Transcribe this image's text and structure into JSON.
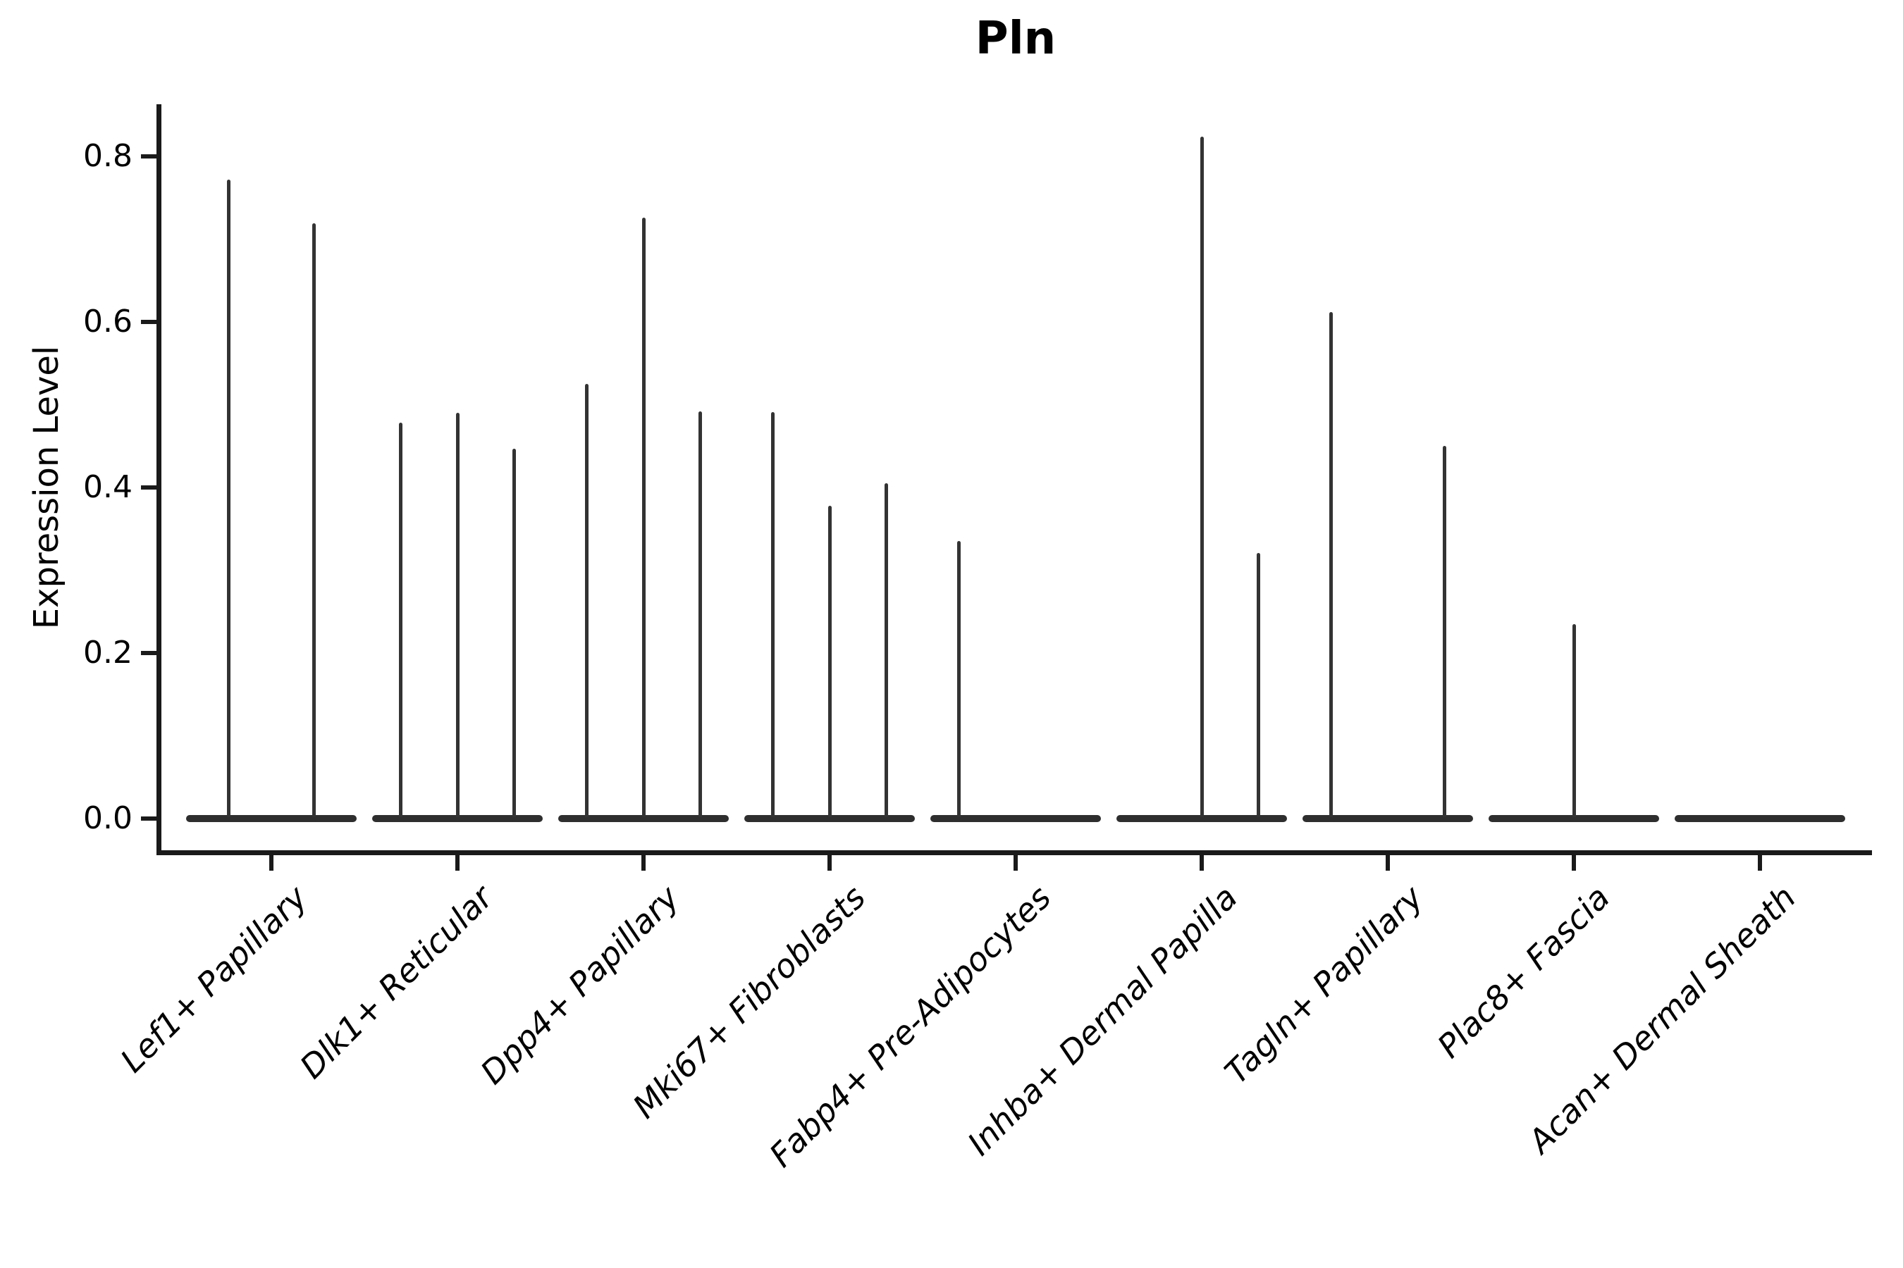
{
  "title": "Pln",
  "ylabel": "Expression Level",
  "yticks": [
    "0.0",
    "0.2",
    "0.4",
    "0.6",
    "0.8"
  ],
  "chart_data": {
    "type": "violin",
    "title": "Pln",
    "xlabel": "",
    "ylabel": "Expression Level",
    "ylim": [
      0.0,
      0.86
    ],
    "ytick_values": [
      0.0,
      0.2,
      0.4,
      0.6,
      0.8
    ],
    "grid": false,
    "legend": "none",
    "description": "Single-cell expression violin plot; each category shows a flat density body at 0 with thin spikes marking rare expressing cells.",
    "categories": [
      "Lef1+ Papillary",
      "Dlk1+ Reticular",
      "Dpp4+ Papillary",
      "Mki67+ Fibroblasts",
      "Fabp4+ Pre-Adipocytes",
      "Inhba+ Dermal Papilla",
      "Tagln+ Papillary",
      "Plac8+ Fascia",
      "Acan+ Dermal Sheath"
    ],
    "violins": [
      {
        "category": "Lef1+ Papillary",
        "baseline_value": 0.0,
        "spikes": [
          {
            "value": 0.772,
            "position": 0.25
          },
          {
            "value": 0.719,
            "position": 0.75
          }
        ]
      },
      {
        "category": "Dlk1+ Reticular",
        "baseline_value": 0.0,
        "spikes": [
          {
            "value": 0.478,
            "position": 0.167
          },
          {
            "value": 0.49,
            "position": 0.5
          },
          {
            "value": 0.447,
            "position": 0.833
          }
        ]
      },
      {
        "category": "Dpp4+ Papillary",
        "baseline_value": 0.0,
        "spikes": [
          {
            "value": 0.525,
            "position": 0.167
          },
          {
            "value": 0.726,
            "position": 0.5
          },
          {
            "value": 0.492,
            "position": 0.833
          }
        ]
      },
      {
        "category": "Mki67+ Fibroblasts",
        "baseline_value": 0.0,
        "spikes": [
          {
            "value": 0.491,
            "position": 0.167
          },
          {
            "value": 0.378,
            "position": 0.5
          },
          {
            "value": 0.405,
            "position": 0.833
          }
        ]
      },
      {
        "category": "Fabp4+ Pre-Adipocytes",
        "baseline_value": 0.0,
        "spikes": [
          {
            "value": 0.335,
            "position": 0.167
          }
        ]
      },
      {
        "category": "Inhba+ Dermal Papilla",
        "baseline_value": 0.0,
        "spikes": [
          {
            "value": 0.824,
            "position": 0.5
          },
          {
            "value": 0.321,
            "position": 0.833
          }
        ]
      },
      {
        "category": "Tagln+ Papillary",
        "baseline_value": 0.0,
        "spikes": [
          {
            "value": 0.612,
            "position": 0.167
          },
          {
            "value": 0.45,
            "position": 0.833
          }
        ]
      },
      {
        "category": "Plac8+ Fascia",
        "baseline_value": 0.0,
        "spikes": [
          {
            "value": 0.235,
            "position": 0.5
          }
        ]
      },
      {
        "category": "Acan+ Dermal Sheath",
        "baseline_value": 0.0,
        "spikes": []
      }
    ]
  }
}
